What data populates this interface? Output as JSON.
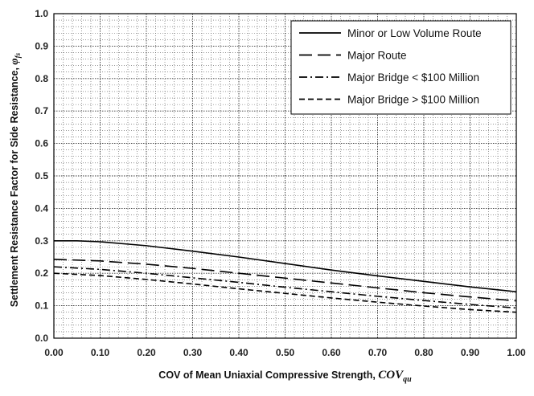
{
  "chart_data": {
    "type": "line",
    "xlabel_prefix": "COV of Mean Uniaxial Compressive Strength, ",
    "xlabel_symbol": "COV",
    "xlabel_sub": "qu",
    "ylabel_prefix": "Settlement Resistance Factor for Side Resistance, ",
    "ylabel_symbol": "φ",
    "ylabel_sub": "fs",
    "xlim": [
      0,
      1
    ],
    "ylim": [
      0,
      1
    ],
    "x_ticks": [
      "0.00",
      "0.10",
      "0.20",
      "0.30",
      "0.40",
      "0.50",
      "0.60",
      "0.70",
      "0.80",
      "0.90",
      "1.00"
    ],
    "y_ticks": [
      "0.0",
      "0.1",
      "0.2",
      "0.3",
      "0.4",
      "0.5",
      "0.6",
      "0.7",
      "0.8",
      "0.9",
      "1.0"
    ],
    "grid": "major and minor, dotted",
    "legend_position": "top-right",
    "series": [
      {
        "name": "Minor or Low Volume Route",
        "style": "solid",
        "x": [
          0,
          0.05,
          0.1,
          0.2,
          0.3,
          0.4,
          0.5,
          0.6,
          0.7,
          0.8,
          0.9,
          1.0
        ],
        "y": [
          0.3,
          0.3,
          0.297,
          0.285,
          0.268,
          0.25,
          0.23,
          0.21,
          0.192,
          0.175,
          0.158,
          0.143
        ]
      },
      {
        "name": "Major Route",
        "style": "long-dash",
        "x": [
          0,
          0.1,
          0.2,
          0.3,
          0.4,
          0.5,
          0.6,
          0.7,
          0.8,
          0.9,
          1.0
        ],
        "y": [
          0.243,
          0.238,
          0.228,
          0.215,
          0.2,
          0.185,
          0.17,
          0.155,
          0.14,
          0.127,
          0.115
        ]
      },
      {
        "name": "Major Bridge < $100 Million",
        "style": "dash-dot",
        "x": [
          0,
          0.1,
          0.2,
          0.3,
          0.4,
          0.5,
          0.6,
          0.7,
          0.8,
          0.9,
          1.0
        ],
        "y": [
          0.22,
          0.212,
          0.2,
          0.186,
          0.172,
          0.157,
          0.143,
          0.129,
          0.116,
          0.104,
          0.093
        ]
      },
      {
        "name": "Major Bridge > $100 Million",
        "style": "short-dash",
        "x": [
          0,
          0.1,
          0.2,
          0.3,
          0.4,
          0.5,
          0.6,
          0.7,
          0.8,
          0.9,
          1.0
        ],
        "y": [
          0.2,
          0.193,
          0.181,
          0.167,
          0.152,
          0.138,
          0.124,
          0.111,
          0.099,
          0.088,
          0.08
        ]
      }
    ]
  }
}
